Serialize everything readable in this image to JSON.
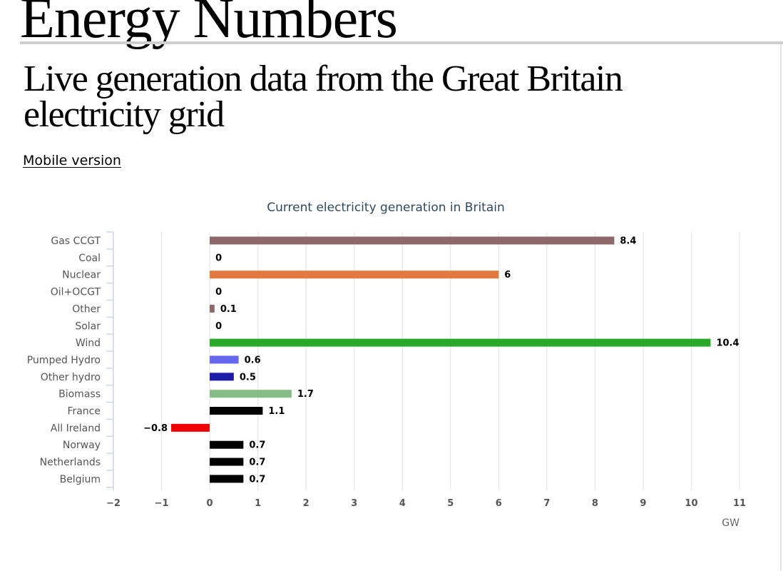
{
  "header": {
    "site_title": "Energy Numbers",
    "subtitle": "Live generation data from the Great Britain electricity grid",
    "mobile_link": "Mobile version"
  },
  "chart_data": {
    "type": "bar",
    "orientation": "horizontal",
    "title": "Current electricity generation in Britain",
    "xlabel": "GW",
    "ylabel": "",
    "xlim": [
      -2,
      11
    ],
    "xticks": [
      -2,
      -1,
      0,
      1,
      2,
      3,
      4,
      5,
      6,
      7,
      8,
      9,
      10,
      11
    ],
    "grid": true,
    "categories": [
      "Gas CCGT",
      "Coal",
      "Nuclear",
      "Oil+OCGT",
      "Other",
      "Solar",
      "Wind",
      "Pumped Hydro",
      "Other hydro",
      "Biomass",
      "France",
      "All Ireland",
      "Norway",
      "Netherlands",
      "Belgium"
    ],
    "values": [
      8.4,
      0,
      6,
      0,
      0.1,
      0,
      10.4,
      0.6,
      0.5,
      1.7,
      1.1,
      -0.8,
      0.7,
      0.7,
      0.7
    ],
    "value_labels": [
      "8.4",
      "0",
      "6",
      "0",
      "0.1",
      "0",
      "10.4",
      "0.6",
      "0.5",
      "1.7",
      "1.1",
      "−0.8",
      "0.7",
      "0.7",
      "0.7"
    ],
    "colors": [
      "#8e6868",
      "#8e6868",
      "#e07a40",
      "#8e6868",
      "#8e6868",
      "#f0c000",
      "#29a829",
      "#6666ee",
      "#1c1ca8",
      "#86bc86",
      "#000000",
      "#ee0000",
      "#000000",
      "#000000",
      "#000000"
    ]
  }
}
